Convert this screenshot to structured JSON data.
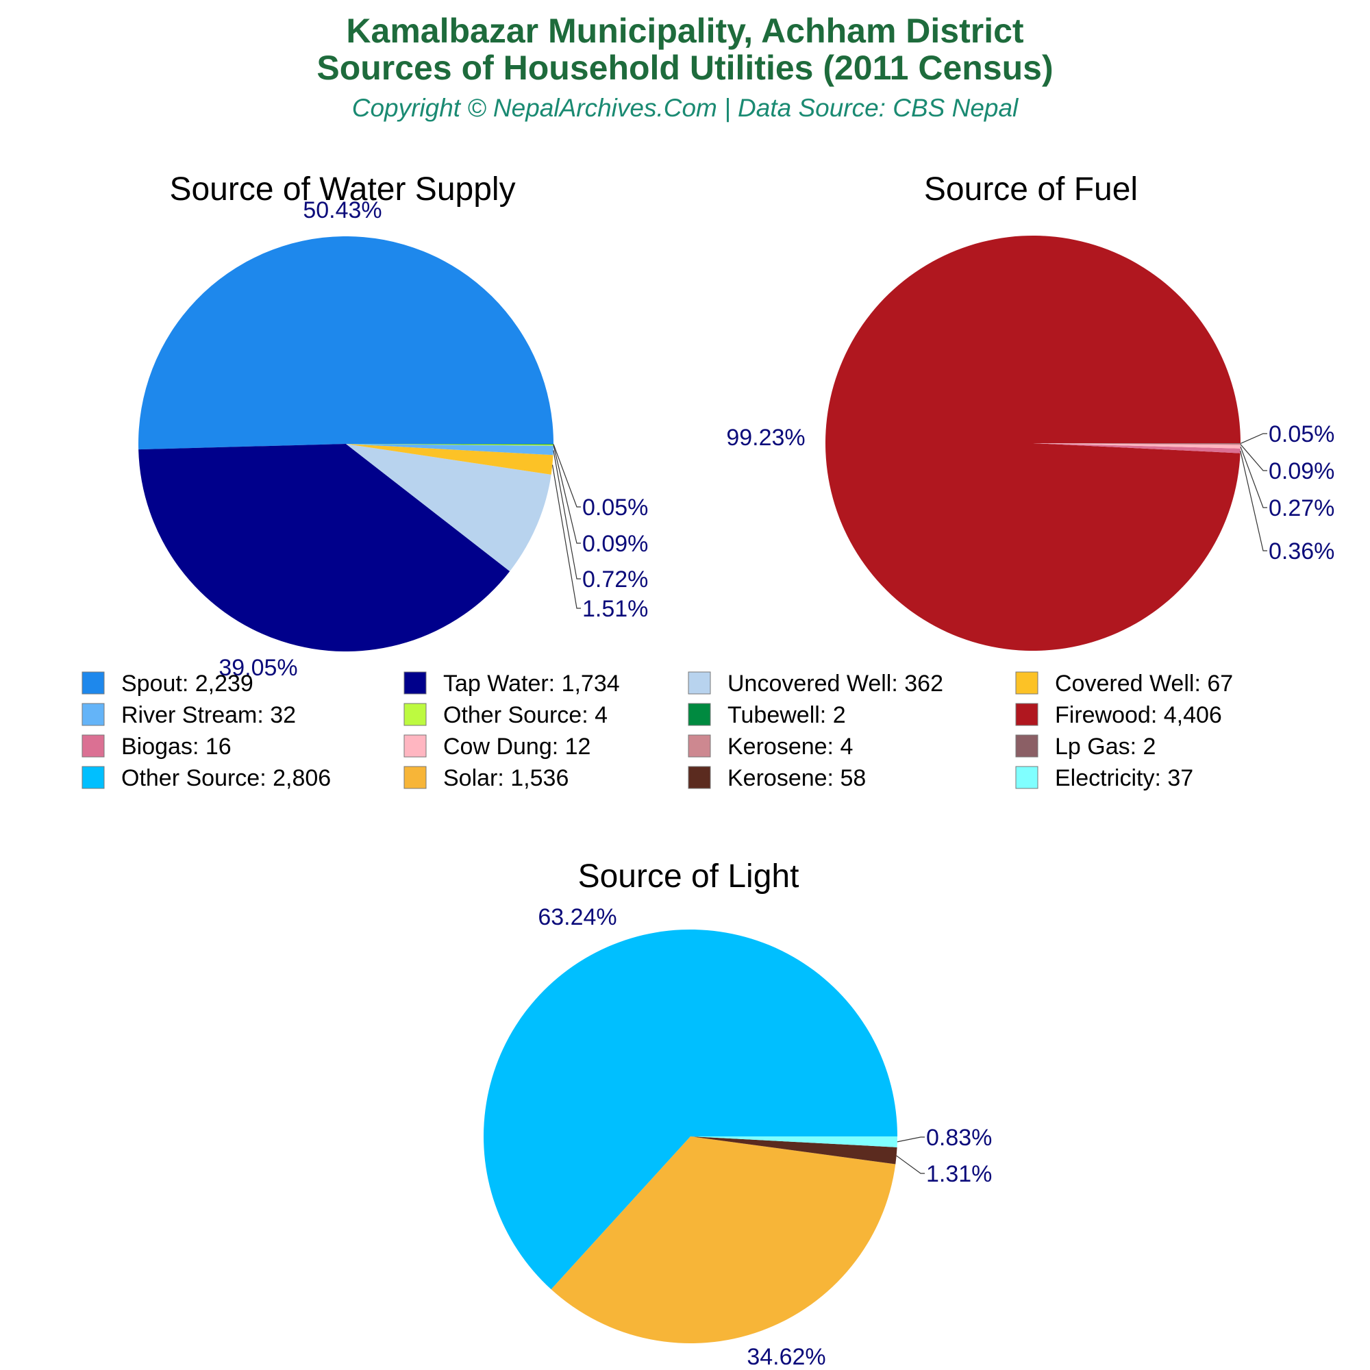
{
  "header": {
    "title_line1": "Kamalbazar Municipality, Achham District",
    "title_line2": "Sources of Household Utilities (2011 Census)",
    "subtitle": "Copyright © NepalArchives.Com | Data Source: CBS Nepal"
  },
  "chart_data": [
    {
      "type": "pie",
      "title": "Source of Water Supply",
      "slices": [
        {
          "label": "Spout",
          "value": 2239,
          "pct": "50.43%",
          "color": "#1e88ec"
        },
        {
          "label": "Tap Water",
          "value": 1734,
          "pct": "39.05%",
          "color": "#00008b"
        },
        {
          "label": "Uncovered Well",
          "value": 362,
          "pct": "8.15%",
          "color": "#b8d3ee"
        },
        {
          "label": "Covered Well",
          "value": 67,
          "pct": "1.51%",
          "color": "#fcc226"
        },
        {
          "label": "River Stream",
          "value": 32,
          "pct": "0.72%",
          "color": "#64b4f8"
        },
        {
          "label": "Other Source",
          "value": 4,
          "pct": "0.09%",
          "color": "#bdfa40"
        },
        {
          "label": "Tubewell",
          "value": 2,
          "pct": "0.05%",
          "color": "#008a40"
        }
      ]
    },
    {
      "type": "pie",
      "title": "Source of Fuel",
      "slices": [
        {
          "label": "Firewood",
          "value": 4406,
          "pct": "99.23%",
          "color": "#b0171f"
        },
        {
          "label": "Biogas",
          "value": 16,
          "pct": "0.36%",
          "color": "#db7093"
        },
        {
          "label": "Cow Dung",
          "value": 12,
          "pct": "0.27%",
          "color": "#ffb6c1"
        },
        {
          "label": "Kerosene",
          "value": 4,
          "pct": "0.09%",
          "color": "#cd8890"
        },
        {
          "label": "Lp Gas",
          "value": 2,
          "pct": "0.05%",
          "color": "#8b5f65"
        }
      ]
    },
    {
      "type": "pie",
      "title": "Source of Light",
      "slices": [
        {
          "label": "Other Source",
          "value": 2806,
          "pct": "63.24%",
          "color": "#00bfff"
        },
        {
          "label": "Solar",
          "value": 1536,
          "pct": "34.62%",
          "color": "#f7b538"
        },
        {
          "label": "Kerosene",
          "value": 58,
          "pct": "1.31%",
          "color": "#5b2b1f"
        },
        {
          "label": "Electricity",
          "value": 37,
          "pct": "0.83%",
          "color": "#80ffff"
        }
      ]
    }
  ],
  "legend": [
    {
      "text": "Spout: 2,239",
      "color": "#1e88ec"
    },
    {
      "text": "Tap Water: 1,734",
      "color": "#00008b"
    },
    {
      "text": "Uncovered Well: 362",
      "color": "#b8d3ee"
    },
    {
      "text": "Covered Well: 67",
      "color": "#fcc226"
    },
    {
      "text": "River Stream: 32",
      "color": "#64b4f8"
    },
    {
      "text": "Other Source: 4",
      "color": "#bdfa40"
    },
    {
      "text": "Tubewell: 2",
      "color": "#008a40"
    },
    {
      "text": "Firewood: 4,406",
      "color": "#b0171f"
    },
    {
      "text": "Biogas: 16",
      "color": "#db7093"
    },
    {
      "text": "Cow Dung: 12",
      "color": "#ffb6c1"
    },
    {
      "text": "Kerosene: 4",
      "color": "#cd8890"
    },
    {
      "text": "Lp Gas: 2",
      "color": "#8b5f65"
    },
    {
      "text": "Other Source: 2,806",
      "color": "#00bfff"
    },
    {
      "text": "Solar: 1,536",
      "color": "#f7b538"
    },
    {
      "text": "Kerosene: 58",
      "color": "#5b2b1f"
    },
    {
      "text": "Electricity: 37",
      "color": "#80ffff"
    }
  ]
}
